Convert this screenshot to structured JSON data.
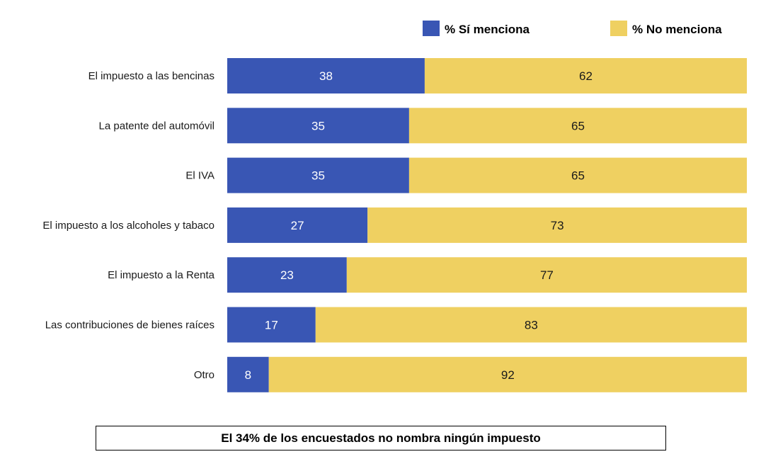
{
  "chart_data": {
    "type": "bar",
    "orientation": "horizontal",
    "stacked": true,
    "categories": [
      "El impuesto a las bencinas",
      "La patente del automóvil",
      "El IVA",
      "El impuesto a los alcoholes y tabaco",
      "El impuesto a la Renta",
      "Las contribuciones de bienes raíces",
      "Otro"
    ],
    "series": [
      {
        "name": "% Sí menciona",
        "color": "#3956b4",
        "label_color": "#ffffff",
        "values": [
          38,
          35,
          35,
          27,
          23,
          17,
          8
        ]
      },
      {
        "name": "% No menciona",
        "color": "#efd061",
        "label_color": "#1a1a1a",
        "values": [
          62,
          65,
          65,
          73,
          77,
          83,
          92
        ]
      }
    ],
    "xlim": [
      0,
      100
    ],
    "grid": false,
    "legend_position": "top-right"
  },
  "footnote": "El 34% de los encuestados no nombra ningún impuesto"
}
